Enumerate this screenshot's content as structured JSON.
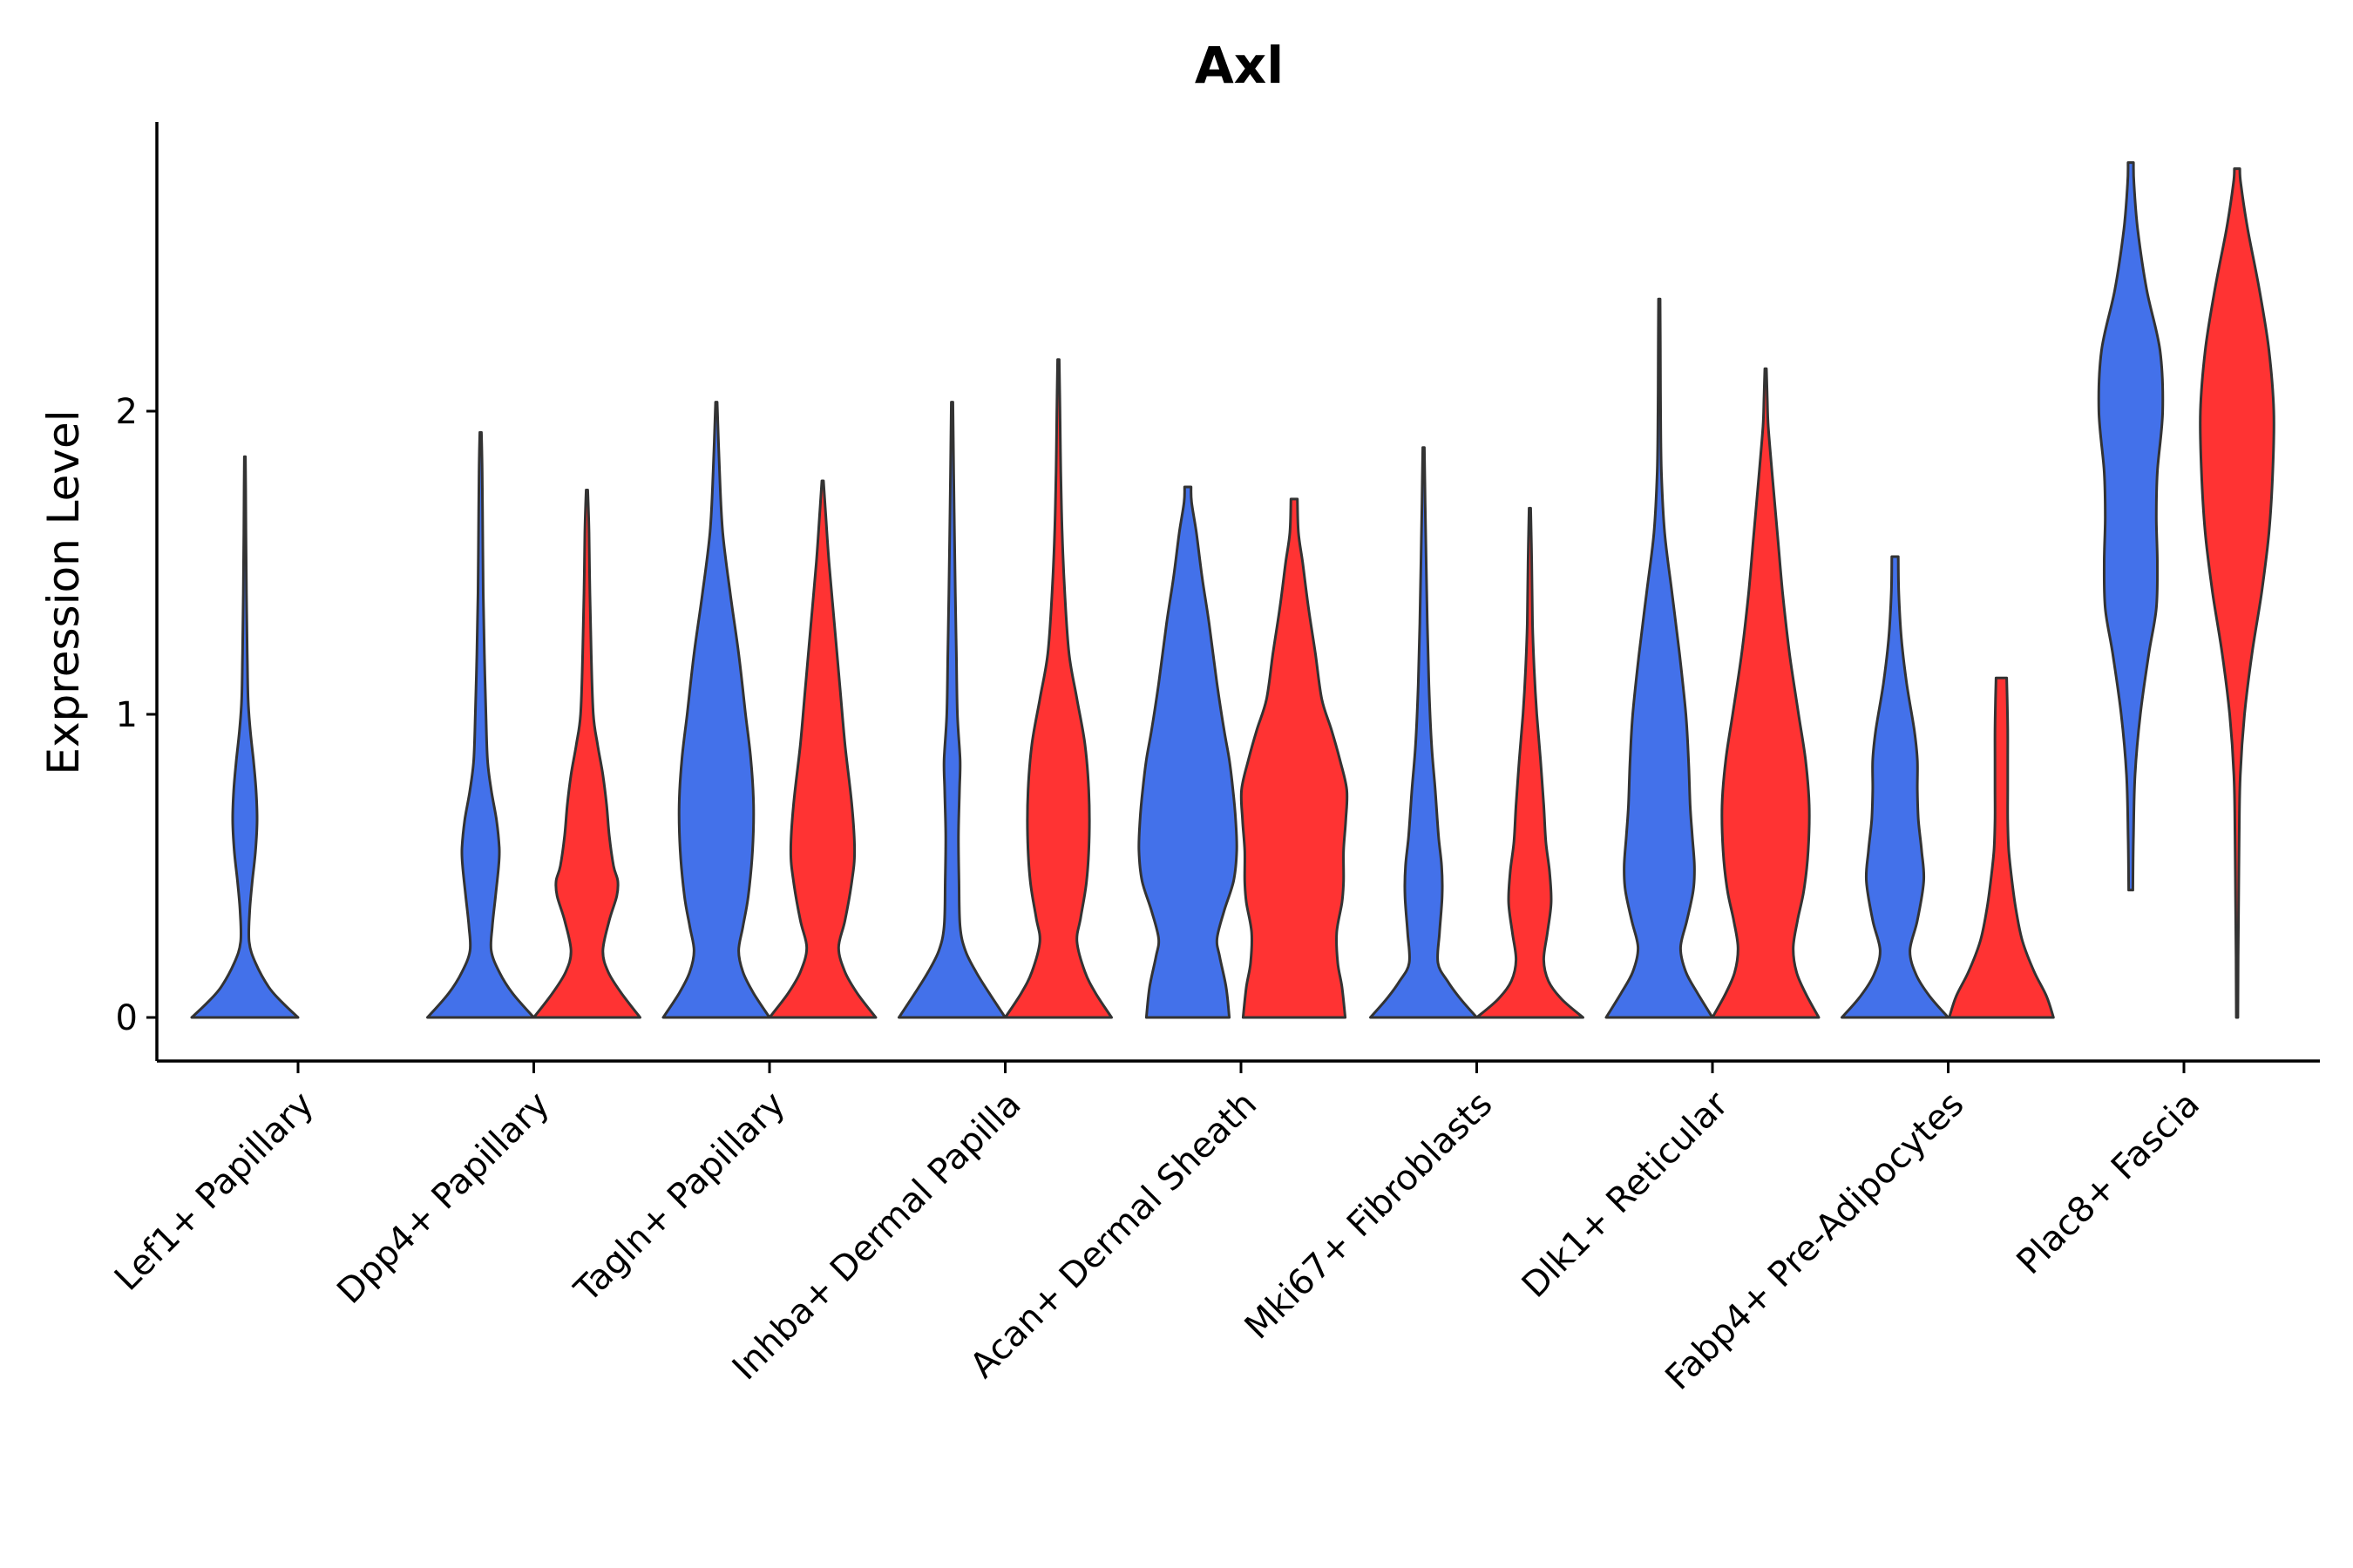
{
  "chart_data": {
    "type": "violin",
    "title": "Axl",
    "xlabel": "",
    "ylabel": "Expression Level",
    "ylim": [
      -0.14,
      2.95
    ],
    "yticks": [
      0,
      1,
      2
    ],
    "legend": "none",
    "grid": false,
    "colors": {
      "group1": "#4371EA",
      "group2": "#FF3333"
    },
    "categories": [
      "Lef1+ Papillary",
      "Dpp4+ Papillary",
      "Tagln+ Papillary",
      "Inhba+ Dermal Papilla",
      "Acan+ Dermal Sheath",
      "Mki67+ Fibroblasts",
      "Dlk1+ Reticular",
      "Fabp4+ Pre-Adipocytes",
      "Plac8+ Fascia"
    ],
    "violins": [
      {
        "category": "Lef1+ Papillary",
        "group": "group1",
        "min": 0,
        "max": 1.85,
        "profile": [
          [
            0,
            1.0
          ],
          [
            0.05,
            0.7
          ],
          [
            0.1,
            0.45
          ],
          [
            0.18,
            0.2
          ],
          [
            0.25,
            0.08
          ],
          [
            0.35,
            0.09
          ],
          [
            0.45,
            0.14
          ],
          [
            0.55,
            0.2
          ],
          [
            0.65,
            0.23
          ],
          [
            0.75,
            0.21
          ],
          [
            0.85,
            0.16
          ],
          [
            0.95,
            0.1
          ],
          [
            1.05,
            0.06
          ],
          [
            1.2,
            0.045
          ],
          [
            1.4,
            0.03
          ],
          [
            1.6,
            0.02
          ],
          [
            1.75,
            0.015
          ],
          [
            1.85,
            0.01
          ]
        ]
      },
      {
        "category": "Dpp4+ Papillary",
        "group": "group1",
        "min": 0,
        "max": 1.93,
        "profile": [
          [
            0,
            1.0
          ],
          [
            0.08,
            0.6
          ],
          [
            0.15,
            0.35
          ],
          [
            0.22,
            0.2
          ],
          [
            0.3,
            0.22
          ],
          [
            0.4,
            0.28
          ],
          [
            0.5,
            0.34
          ],
          [
            0.56,
            0.35
          ],
          [
            0.65,
            0.3
          ],
          [
            0.75,
            0.2
          ],
          [
            0.85,
            0.13
          ],
          [
            1.0,
            0.1
          ],
          [
            1.2,
            0.07
          ],
          [
            1.4,
            0.05
          ],
          [
            1.6,
            0.04
          ],
          [
            1.8,
            0.03
          ],
          [
            1.93,
            0.015
          ]
        ]
      },
      {
        "category": "Dpp4+ Papillary",
        "group": "group2",
        "min": 0,
        "max": 1.74,
        "profile": [
          [
            0,
            1.0
          ],
          [
            0.08,
            0.65
          ],
          [
            0.15,
            0.4
          ],
          [
            0.22,
            0.3
          ],
          [
            0.32,
            0.42
          ],
          [
            0.4,
            0.56
          ],
          [
            0.45,
            0.58
          ],
          [
            0.5,
            0.5
          ],
          [
            0.6,
            0.42
          ],
          [
            0.7,
            0.37
          ],
          [
            0.8,
            0.3
          ],
          [
            0.9,
            0.2
          ],
          [
            1.0,
            0.12
          ],
          [
            1.2,
            0.08
          ],
          [
            1.4,
            0.055
          ],
          [
            1.6,
            0.04
          ],
          [
            1.74,
            0.015
          ]
        ]
      },
      {
        "category": "Tagln+ Papillary",
        "group": "group1",
        "min": 0,
        "max": 2.03,
        "profile": [
          [
            0,
            1.0
          ],
          [
            0.08,
            0.7
          ],
          [
            0.15,
            0.5
          ],
          [
            0.22,
            0.42
          ],
          [
            0.3,
            0.5
          ],
          [
            0.4,
            0.6
          ],
          [
            0.55,
            0.68
          ],
          [
            0.7,
            0.7
          ],
          [
            0.85,
            0.65
          ],
          [
            1.0,
            0.55
          ],
          [
            1.2,
            0.42
          ],
          [
            1.4,
            0.26
          ],
          [
            1.6,
            0.12
          ],
          [
            1.8,
            0.06
          ],
          [
            2.03,
            0.015
          ]
        ]
      },
      {
        "category": "Tagln+ Papillary",
        "group": "group2",
        "min": 0,
        "max": 1.77,
        "profile": [
          [
            0,
            1.0
          ],
          [
            0.08,
            0.65
          ],
          [
            0.15,
            0.42
          ],
          [
            0.23,
            0.3
          ],
          [
            0.32,
            0.42
          ],
          [
            0.45,
            0.55
          ],
          [
            0.55,
            0.6
          ],
          [
            0.7,
            0.55
          ],
          [
            0.9,
            0.42
          ],
          [
            1.1,
            0.32
          ],
          [
            1.3,
            0.22
          ],
          [
            1.5,
            0.12
          ],
          [
            1.65,
            0.06
          ],
          [
            1.77,
            0.015
          ]
        ]
      },
      {
        "category": "Inhba+ Dermal Papilla",
        "group": "group1",
        "min": 0,
        "max": 2.03,
        "profile": [
          [
            0,
            1.0
          ],
          [
            0.08,
            0.7
          ],
          [
            0.15,
            0.45
          ],
          [
            0.22,
            0.25
          ],
          [
            0.3,
            0.15
          ],
          [
            0.45,
            0.13
          ],
          [
            0.6,
            0.12
          ],
          [
            0.75,
            0.14
          ],
          [
            0.85,
            0.15
          ],
          [
            1.0,
            0.1
          ],
          [
            1.2,
            0.08
          ],
          [
            1.4,
            0.06
          ],
          [
            1.6,
            0.045
          ],
          [
            1.8,
            0.03
          ],
          [
            2.03,
            0.015
          ]
        ]
      },
      {
        "category": "Inhba+ Dermal Papilla",
        "group": "group2",
        "min": 0,
        "max": 2.17,
        "profile": [
          [
            0,
            1.0
          ],
          [
            0.08,
            0.7
          ],
          [
            0.15,
            0.5
          ],
          [
            0.25,
            0.35
          ],
          [
            0.33,
            0.42
          ],
          [
            0.45,
            0.53
          ],
          [
            0.6,
            0.58
          ],
          [
            0.75,
            0.57
          ],
          [
            0.9,
            0.5
          ],
          [
            1.05,
            0.35
          ],
          [
            1.2,
            0.2
          ],
          [
            1.4,
            0.12
          ],
          [
            1.6,
            0.07
          ],
          [
            1.8,
            0.045
          ],
          [
            2.0,
            0.03
          ],
          [
            2.17,
            0.015
          ]
        ]
      },
      {
        "category": "Acan+ Dermal Sheath",
        "group": "group1",
        "min": 0,
        "max": 1.75,
        "profile": [
          [
            0,
            0.78
          ],
          [
            0.1,
            0.72
          ],
          [
            0.2,
            0.6
          ],
          [
            0.26,
            0.55
          ],
          [
            0.35,
            0.68
          ],
          [
            0.45,
            0.86
          ],
          [
            0.55,
            0.92
          ],
          [
            0.65,
            0.9
          ],
          [
            0.75,
            0.85
          ],
          [
            0.85,
            0.78
          ],
          [
            0.95,
            0.68
          ],
          [
            1.1,
            0.55
          ],
          [
            1.3,
            0.4
          ],
          [
            1.45,
            0.27
          ],
          [
            1.6,
            0.16
          ],
          [
            1.7,
            0.07
          ],
          [
            1.75,
            0.06
          ]
        ]
      },
      {
        "category": "Acan+ Dermal Sheath",
        "group": "group2",
        "min": 0,
        "max": 1.71,
        "profile": [
          [
            0,
            0.96
          ],
          [
            0.1,
            0.9
          ],
          [
            0.18,
            0.82
          ],
          [
            0.28,
            0.8
          ],
          [
            0.38,
            0.9
          ],
          [
            0.45,
            0.93
          ],
          [
            0.55,
            0.93
          ],
          [
            0.65,
            0.97
          ],
          [
            0.75,
            0.99
          ],
          [
            0.85,
            0.86
          ],
          [
            0.95,
            0.7
          ],
          [
            1.05,
            0.52
          ],
          [
            1.2,
            0.4
          ],
          [
            1.35,
            0.27
          ],
          [
            1.5,
            0.16
          ],
          [
            1.6,
            0.08
          ],
          [
            1.71,
            0.06
          ]
        ]
      },
      {
        "category": "Mki67+ Fibroblasts",
        "group": "group1",
        "min": 0,
        "max": 1.88,
        "profile": [
          [
            0,
            1.0
          ],
          [
            0.06,
            0.7
          ],
          [
            0.12,
            0.45
          ],
          [
            0.18,
            0.27
          ],
          [
            0.28,
            0.3
          ],
          [
            0.4,
            0.35
          ],
          [
            0.5,
            0.34
          ],
          [
            0.6,
            0.28
          ],
          [
            0.75,
            0.22
          ],
          [
            0.9,
            0.15
          ],
          [
            1.1,
            0.1
          ],
          [
            1.3,
            0.07
          ],
          [
            1.5,
            0.05
          ],
          [
            1.7,
            0.03
          ],
          [
            1.88,
            0.015
          ]
        ]
      },
      {
        "category": "Mki67+ Fibroblasts",
        "group": "group2",
        "min": 0,
        "max": 1.68,
        "profile": [
          [
            0,
            1.0
          ],
          [
            0.06,
            0.6
          ],
          [
            0.12,
            0.35
          ],
          [
            0.19,
            0.26
          ],
          [
            0.28,
            0.33
          ],
          [
            0.38,
            0.4
          ],
          [
            0.48,
            0.37
          ],
          [
            0.58,
            0.3
          ],
          [
            0.7,
            0.26
          ],
          [
            0.85,
            0.2
          ],
          [
            1.0,
            0.13
          ],
          [
            1.15,
            0.08
          ],
          [
            1.3,
            0.05
          ],
          [
            1.5,
            0.035
          ],
          [
            1.68,
            0.015
          ]
        ]
      },
      {
        "category": "Dlk1+ Reticular",
        "group": "group1",
        "min": 0,
        "max": 2.37,
        "profile": [
          [
            0,
            1.0
          ],
          [
            0.08,
            0.72
          ],
          [
            0.15,
            0.5
          ],
          [
            0.23,
            0.4
          ],
          [
            0.32,
            0.52
          ],
          [
            0.42,
            0.64
          ],
          [
            0.5,
            0.66
          ],
          [
            0.6,
            0.62
          ],
          [
            0.7,
            0.58
          ],
          [
            0.85,
            0.55
          ],
          [
            1.0,
            0.5
          ],
          [
            1.2,
            0.38
          ],
          [
            1.4,
            0.24
          ],
          [
            1.6,
            0.1
          ],
          [
            1.8,
            0.04
          ],
          [
            2.0,
            0.025
          ],
          [
            2.2,
            0.02
          ],
          [
            2.37,
            0.015
          ]
        ]
      },
      {
        "category": "Dlk1+ Reticular",
        "group": "group2",
        "min": 0,
        "max": 2.14,
        "profile": [
          [
            0,
            1.0
          ],
          [
            0.08,
            0.75
          ],
          [
            0.15,
            0.58
          ],
          [
            0.23,
            0.52
          ],
          [
            0.32,
            0.6
          ],
          [
            0.42,
            0.72
          ],
          [
            0.55,
            0.8
          ],
          [
            0.7,
            0.82
          ],
          [
            0.85,
            0.75
          ],
          [
            1.0,
            0.62
          ],
          [
            1.2,
            0.45
          ],
          [
            1.4,
            0.32
          ],
          [
            1.6,
            0.22
          ],
          [
            1.8,
            0.12
          ],
          [
            1.95,
            0.05
          ],
          [
            2.05,
            0.03
          ],
          [
            2.14,
            0.015
          ]
        ]
      },
      {
        "category": "Fabp4+ Pre-Adipocytes",
        "group": "group1",
        "min": 0,
        "max": 1.52,
        "profile": [
          [
            0,
            1.0
          ],
          [
            0.07,
            0.65
          ],
          [
            0.14,
            0.4
          ],
          [
            0.22,
            0.28
          ],
          [
            0.32,
            0.42
          ],
          [
            0.45,
            0.54
          ],
          [
            0.55,
            0.5
          ],
          [
            0.65,
            0.44
          ],
          [
            0.75,
            0.42
          ],
          [
            0.85,
            0.42
          ],
          [
            0.95,
            0.36
          ],
          [
            1.1,
            0.22
          ],
          [
            1.25,
            0.12
          ],
          [
            1.4,
            0.07
          ],
          [
            1.52,
            0.06
          ]
        ]
      },
      {
        "category": "Fabp4+ Pre-Adipocytes",
        "group": "group2",
        "min": 0,
        "max": 1.12,
        "profile": [
          [
            0,
            0.98
          ],
          [
            0.07,
            0.85
          ],
          [
            0.15,
            0.62
          ],
          [
            0.25,
            0.4
          ],
          [
            0.35,
            0.28
          ],
          [
            0.45,
            0.2
          ],
          [
            0.55,
            0.14
          ],
          [
            0.65,
            0.12
          ],
          [
            0.75,
            0.12
          ],
          [
            0.85,
            0.12
          ],
          [
            0.95,
            0.12
          ],
          [
            1.05,
            0.11
          ],
          [
            1.12,
            0.1
          ]
        ]
      },
      {
        "category": "Plac8+ Fascia",
        "group": "group1",
        "min": 0.42,
        "max": 2.82,
        "profile": [
          [
            0.42,
            0.04
          ],
          [
            0.6,
            0.05
          ],
          [
            0.8,
            0.08
          ],
          [
            1.0,
            0.18
          ],
          [
            1.2,
            0.34
          ],
          [
            1.35,
            0.48
          ],
          [
            1.5,
            0.5
          ],
          [
            1.65,
            0.48
          ],
          [
            1.8,
            0.5
          ],
          [
            2.0,
            0.6
          ],
          [
            2.2,
            0.55
          ],
          [
            2.4,
            0.3
          ],
          [
            2.6,
            0.13
          ],
          [
            2.75,
            0.06
          ],
          [
            2.82,
            0.05
          ]
        ]
      },
      {
        "category": "Plac8+ Fascia",
        "group": "group2",
        "min": 0,
        "max": 2.8,
        "profile": [
          [
            0,
            0.015
          ],
          [
            0.2,
            0.02
          ],
          [
            0.4,
            0.03
          ],
          [
            0.6,
            0.04
          ],
          [
            0.8,
            0.06
          ],
          [
            1.0,
            0.14
          ],
          [
            1.2,
            0.28
          ],
          [
            1.4,
            0.46
          ],
          [
            1.6,
            0.6
          ],
          [
            1.8,
            0.67
          ],
          [
            2.0,
            0.69
          ],
          [
            2.2,
            0.6
          ],
          [
            2.4,
            0.42
          ],
          [
            2.6,
            0.2
          ],
          [
            2.75,
            0.07
          ],
          [
            2.8,
            0.05
          ]
        ]
      }
    ]
  }
}
